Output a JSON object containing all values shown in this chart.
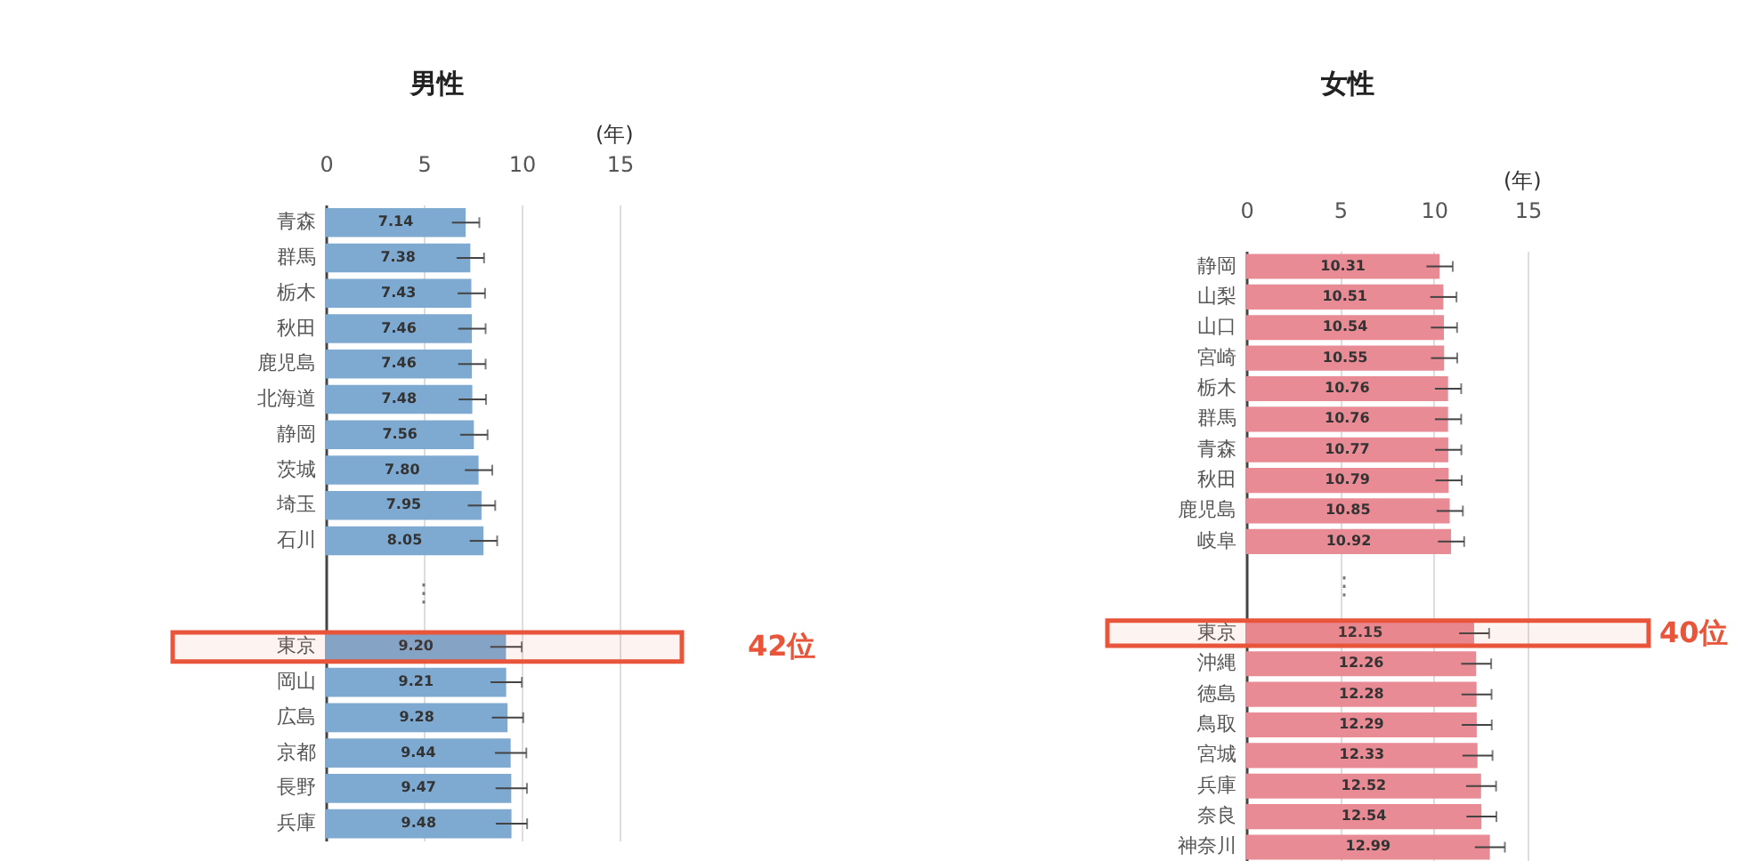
{
  "chart_data": [
    {
      "type": "bar",
      "orientation": "horizontal",
      "title": "男性",
      "xlabel": "(年)",
      "categories": [
        "青森",
        "群馬",
        "栃木",
        "秋田",
        "鹿児島",
        "北海道",
        "静岡",
        "茨城",
        "埼玉",
        "石川",
        null,
        null,
        "東京",
        "岡山",
        "広島",
        "京都",
        "長野",
        "兵庫"
      ],
      "values": [
        7.14,
        7.38,
        7.43,
        7.46,
        7.46,
        7.48,
        7.56,
        7.8,
        7.95,
        8.05,
        null,
        null,
        9.2,
        9.21,
        9.28,
        9.44,
        9.47,
        9.48
      ],
      "value_labels": [
        "7.14",
        "7.38",
        "7.43",
        "7.46",
        "7.46",
        "7.48",
        "7.56",
        "7.80",
        "7.95",
        "8.05",
        null,
        null,
        "9.20",
        "9.21",
        "9.28",
        "9.44",
        "9.47",
        "9.48"
      ],
      "errors": [
        0.7,
        0.7,
        0.7,
        0.7,
        0.7,
        0.7,
        0.7,
        0.7,
        0.7,
        0.7,
        null,
        null,
        0.8,
        0.8,
        0.8,
        0.8,
        0.8,
        0.8
      ],
      "color": "#7ea9d0",
      "xlim": [
        0,
        15
      ],
      "xticks": [
        0,
        5,
        10,
        15
      ],
      "grid": "x",
      "bands": [
        {
          "axis": "y",
          "from": "東京",
          "to": "東京",
          "color": "#e8553a"
        }
      ],
      "annotations": [
        "⋮",
        "42位"
      ]
    },
    {
      "type": "bar",
      "orientation": "horizontal",
      "title": "女性",
      "xlabel": "(年)",
      "categories": [
        "静岡",
        "山梨",
        "山口",
        "宮崎",
        "栃木",
        "群馬",
        "青森",
        "秋田",
        "鹿児島",
        "岐阜",
        null,
        null,
        "東京",
        "沖縄",
        "徳島",
        "鳥取",
        "宮城",
        "兵庫",
        "奈良",
        "神奈川"
      ],
      "values": [
        10.31,
        10.51,
        10.54,
        10.55,
        10.76,
        10.76,
        10.77,
        10.79,
        10.85,
        10.92,
        null,
        null,
        12.15,
        12.26,
        12.28,
        12.29,
        12.33,
        12.52,
        12.54,
        12.99
      ],
      "value_labels": [
        "10.31",
        "10.51",
        "10.54",
        "10.55",
        "10.76",
        "10.76",
        "10.77",
        "10.79",
        "10.85",
        "10.92",
        null,
        null,
        "12.15",
        "12.26",
        "12.28",
        "12.29",
        "12.33",
        "12.52",
        "12.54",
        "12.99"
      ],
      "errors": [
        0.7,
        0.7,
        0.7,
        0.7,
        0.7,
        0.7,
        0.7,
        0.7,
        0.7,
        0.7,
        null,
        null,
        0.8,
        0.8,
        0.8,
        0.8,
        0.8,
        0.8,
        0.8,
        0.8
      ],
      "color": "#e98b95",
      "xlim": [
        0,
        15
      ],
      "xticks": [
        0,
        5,
        10,
        15
      ],
      "grid": "x",
      "bands": [
        {
          "axis": "y",
          "from": "東京",
          "to": "東京",
          "color": "#e8553a"
        }
      ],
      "annotations": [
        "⋮",
        "40位"
      ]
    }
  ]
}
